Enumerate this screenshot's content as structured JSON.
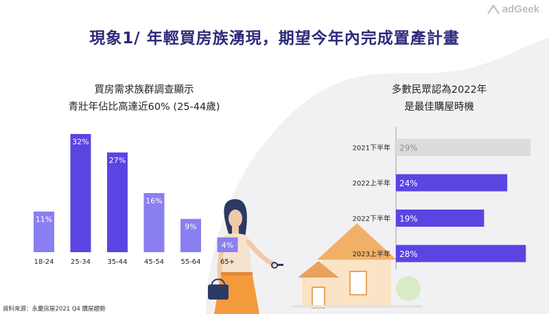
{
  "brand": {
    "logo_text": "adGeek"
  },
  "slide": {
    "title": "現象1/ 年輕買房族湧現，期望今年內完成置產計畫"
  },
  "left_panel": {
    "subtitle_line1": "買房需求族群調查顯示",
    "subtitle_line2": "青壯年佔比高達近60% (25-44歲)"
  },
  "right_panel": {
    "subtitle_line1": "多數民眾認為2022年",
    "subtitle_line2": "是最佳購屋時機"
  },
  "source": "資料來源：永慶房屋2021 Q4 購屋趨勢",
  "colors": {
    "title": "#2d2a7a",
    "bar_light": "#8a7ff0",
    "bar_dark": "#5a45e2",
    "bar_gray": "#dcdcdc",
    "blob": "#f1f1f3"
  },
  "chart_data": [
    {
      "type": "bar",
      "categories": [
        "18-24",
        "25-34",
        "35-44",
        "45-54",
        "55-64",
        "65+"
      ],
      "values": [
        11,
        32,
        27,
        16,
        9,
        4
      ],
      "data_labels": [
        "11%",
        "32%",
        "27%",
        "16%",
        "9%",
        "4%"
      ],
      "highlight": [
        false,
        true,
        true,
        false,
        false,
        false
      ],
      "ylim": [
        0,
        32
      ]
    },
    {
      "type": "bar",
      "orientation": "horizontal",
      "categories": [
        "2021下半年",
        "2022上半年",
        "2022下半年",
        "2023上半年"
      ],
      "values": [
        29,
        24,
        19,
        28
      ],
      "data_labels": [
        "29%",
        "24%",
        "19%",
        "28%"
      ],
      "muted": [
        true,
        false,
        false,
        false
      ],
      "xlim": [
        0,
        29
      ]
    }
  ]
}
